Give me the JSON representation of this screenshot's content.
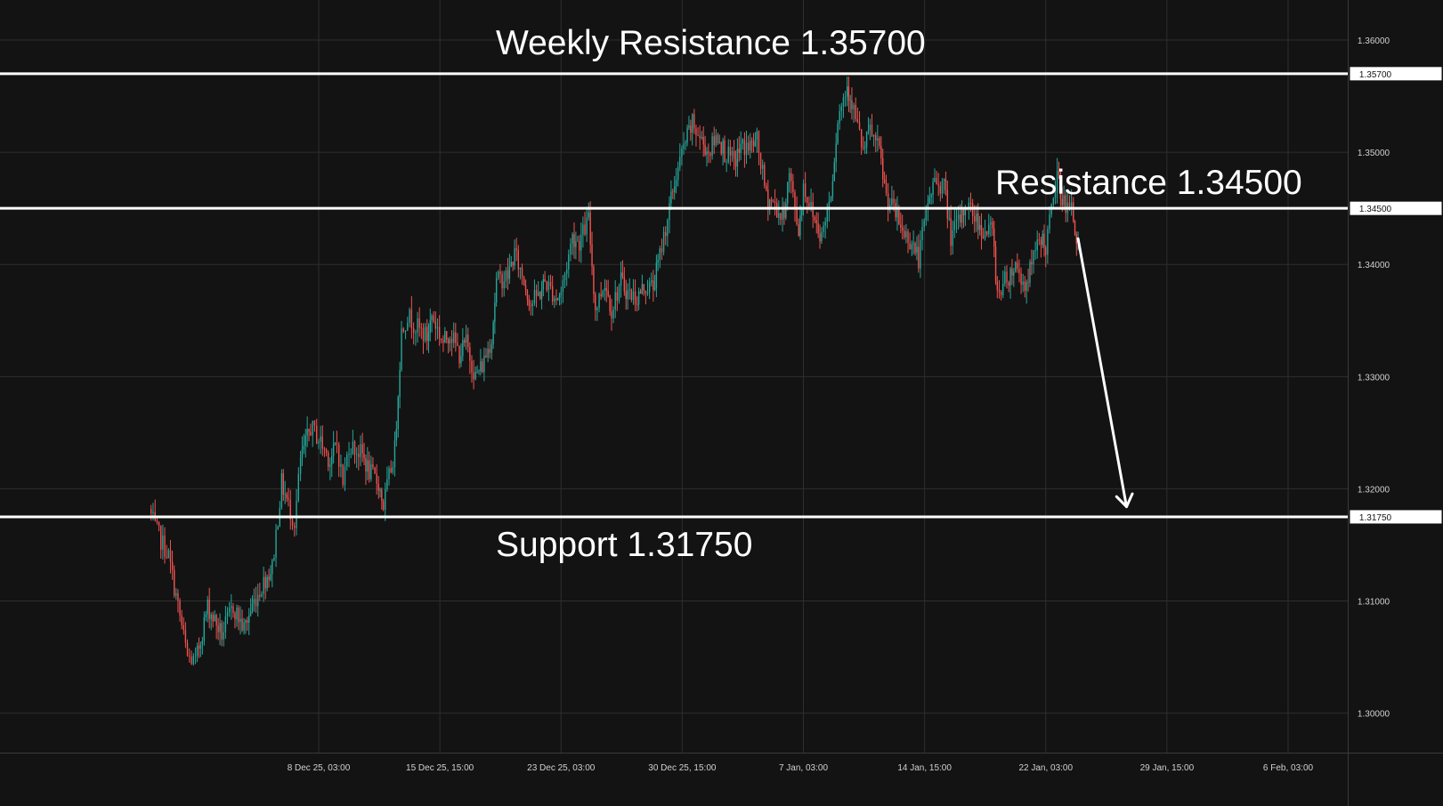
{
  "colors": {
    "background": "#131313",
    "grid": "#2e2e2e",
    "bull": "#26a69a",
    "bear": "#ef5350",
    "level_line": "#ffffff",
    "text": "#ffffff",
    "axis_text": "#d1d1d1"
  },
  "chart_data": {
    "type": "candlestick",
    "title": "",
    "xlabel": "",
    "ylabel": "",
    "ylim": [
      1.2968,
      1.3623
    ],
    "grid": true,
    "y_ticks": [
      {
        "value": 1.3,
        "label": "1.30000"
      },
      {
        "value": 1.31,
        "label": "1.31000"
      },
      {
        "value": 1.32,
        "label": "1.32000"
      },
      {
        "value": 1.33,
        "label": "1.33000"
      },
      {
        "value": 1.34,
        "label": "1.34000"
      },
      {
        "value": 1.35,
        "label": "1.35000"
      },
      {
        "value": 1.36,
        "label": "1.36000"
      }
    ],
    "x_ticks": [
      {
        "value": "2025-12-08T03:00",
        "label": "8 Dec 25, 03:00"
      },
      {
        "value": "2025-12-15T15:00",
        "label": "15 Dec 25, 15:00"
      },
      {
        "value": "2025-12-23T03:00",
        "label": "23 Dec 25, 03:00"
      },
      {
        "value": "2025-12-30T15:00",
        "label": "30 Dec 25, 15:00"
      },
      {
        "value": "2026-01-07T03:00",
        "label": "7 Jan, 03:00"
      },
      {
        "value": "2026-01-14T15:00",
        "label": "14 Jan, 15:00"
      },
      {
        "value": "2026-01-22T03:00",
        "label": "22 Jan, 03:00"
      },
      {
        "value": "2026-01-29T15:00",
        "label": "29 Jan, 15:00"
      },
      {
        "value": "2026-02-06T03:00",
        "label": "6 Feb, 03:00"
      }
    ],
    "price_path": [
      [
        "2025-11-27T15:00",
        1.3182
      ],
      [
        "2025-11-28T00:00",
        1.3165
      ],
      [
        "2025-11-28T20:00",
        1.314
      ],
      [
        "2025-11-30T00:00",
        1.305
      ],
      [
        "2025-11-30T12:00",
        1.3045
      ],
      [
        "2025-12-01T06:00",
        1.3095
      ],
      [
        "2025-12-02T03:00",
        1.307
      ],
      [
        "2025-12-02T20:00",
        1.3095
      ],
      [
        "2025-12-03T12:00",
        1.3075
      ],
      [
        "2025-12-04T03:00",
        1.31
      ],
      [
        "2025-12-04T20:00",
        1.312
      ],
      [
        "2025-12-05T06:00",
        1.313
      ],
      [
        "2025-12-05T20:00",
        1.3205
      ],
      [
        "2025-12-06T06:00",
        1.3185
      ],
      [
        "2025-12-06T15:00",
        1.317
      ],
      [
        "2025-12-07T00:00",
        1.3225
      ],
      [
        "2025-12-07T15:00",
        1.3255
      ],
      [
        "2025-12-08T03:00",
        1.3245
      ],
      [
        "2025-12-08T20:00",
        1.3225
      ],
      [
        "2025-12-09T06:00",
        1.324
      ],
      [
        "2025-12-09T15:00",
        1.3205
      ],
      [
        "2025-12-10T00:00",
        1.324
      ],
      [
        "2025-12-10T20:00",
        1.323
      ],
      [
        "2025-12-11T06:00",
        1.3215
      ],
      [
        "2025-12-11T20:00",
        1.3205
      ],
      [
        "2025-12-12T03:00",
        1.3185
      ],
      [
        "2025-12-12T20:00",
        1.3235
      ],
      [
        "2025-12-13T06:00",
        1.334
      ],
      [
        "2025-12-13T15:00",
        1.3355
      ],
      [
        "2025-12-14T03:00",
        1.3345
      ],
      [
        "2025-12-14T20:00",
        1.3335
      ],
      [
        "2025-12-15T03:00",
        1.3355
      ],
      [
        "2025-12-15T20:00",
        1.333
      ],
      [
        "2025-12-16T06:00",
        1.334
      ],
      [
        "2025-12-16T20:00",
        1.332
      ],
      [
        "2025-12-17T06:00",
        1.333
      ],
      [
        "2025-12-17T20:00",
        1.33
      ],
      [
        "2025-12-18T06:00",
        1.331
      ],
      [
        "2025-12-18T20:00",
        1.3335
      ],
      [
        "2025-12-19T03:00",
        1.3385
      ],
      [
        "2025-12-19T20:00",
        1.339
      ],
      [
        "2025-12-20T06:00",
        1.341
      ],
      [
        "2025-12-20T20:00",
        1.3385
      ],
      [
        "2025-12-21T06:00",
        1.3365
      ],
      [
        "2025-12-21T20:00",
        1.3375
      ],
      [
        "2025-12-22T03:00",
        1.3385
      ],
      [
        "2025-12-22T20:00",
        1.337
      ],
      [
        "2025-12-23T03:00",
        1.3375
      ],
      [
        "2025-12-23T20:00",
        1.3425
      ],
      [
        "2025-12-24T06:00",
        1.342
      ],
      [
        "2025-12-24T20:00",
        1.344
      ],
      [
        "2025-12-25T06:00",
        1.336
      ],
      [
        "2025-12-25T20:00",
        1.3385
      ],
      [
        "2025-12-26T06:00",
        1.336
      ],
      [
        "2025-12-26T20:00",
        1.3385
      ],
      [
        "2025-12-27T06:00",
        1.3375
      ],
      [
        "2025-12-27T20:00",
        1.337
      ],
      [
        "2025-12-28T06:00",
        1.338
      ],
      [
        "2025-12-28T20:00",
        1.338
      ],
      [
        "2025-12-29T03:00",
        1.34
      ],
      [
        "2025-12-29T20:00",
        1.345
      ],
      [
        "2025-12-30T06:00",
        1.348
      ],
      [
        "2025-12-30T20:00",
        1.351
      ],
      [
        "2025-12-31T06:00",
        1.3525
      ],
      [
        "2025-12-31T20:00",
        1.351
      ],
      [
        "2026-01-01T06:00",
        1.35
      ],
      [
        "2026-01-01T20:00",
        1.3515
      ],
      [
        "2026-01-02T06:00",
        1.35
      ],
      [
        "2026-01-02T20:00",
        1.349
      ],
      [
        "2026-01-03T06:00",
        1.3505
      ],
      [
        "2026-01-03T20:00",
        1.3505
      ],
      [
        "2026-01-04T06:00",
        1.351
      ],
      [
        "2026-01-04T20:00",
        1.346
      ],
      [
        "2026-01-05T06:00",
        1.3455
      ],
      [
        "2026-01-05T20:00",
        1.344
      ],
      [
        "2026-01-06T06:00",
        1.348
      ],
      [
        "2026-01-06T20:00",
        1.343
      ],
      [
        "2026-01-07T03:00",
        1.347
      ],
      [
        "2026-01-07T20:00",
        1.344
      ],
      [
        "2026-01-08T06:00",
        1.3425
      ],
      [
        "2026-01-08T20:00",
        1.3465
      ],
      [
        "2026-01-09T06:00",
        1.353
      ],
      [
        "2026-01-09T20:00",
        1.356
      ],
      [
        "2026-01-10T03:00",
        1.3545
      ],
      [
        "2026-01-10T20:00",
        1.35
      ],
      [
        "2026-01-11T06:00",
        1.352
      ],
      [
        "2026-01-11T20:00",
        1.35
      ],
      [
        "2026-01-12T06:00",
        1.346
      ],
      [
        "2026-01-12T20:00",
        1.3445
      ],
      [
        "2026-01-13T06:00",
        1.343
      ],
      [
        "2026-01-13T20:00",
        1.342
      ],
      [
        "2026-01-14T06:00",
        1.3405
      ],
      [
        "2026-01-14T20:00",
        1.3455
      ],
      [
        "2026-01-15T06:00",
        1.3475
      ],
      [
        "2026-01-15T20:00",
        1.347
      ],
      [
        "2026-01-16T06:00",
        1.3425
      ],
      [
        "2026-01-16T20:00",
        1.344
      ],
      [
        "2026-01-17T06:00",
        1.3455
      ],
      [
        "2026-01-17T20:00",
        1.344
      ],
      [
        "2026-01-18T06:00",
        1.343
      ],
      [
        "2026-01-18T20:00",
        1.343
      ],
      [
        "2026-01-19T03:00",
        1.3375
      ],
      [
        "2026-01-19T20:00",
        1.339
      ],
      [
        "2026-01-20T06:00",
        1.34
      ],
      [
        "2026-01-20T20:00",
        1.338
      ],
      [
        "2026-01-21T06:00",
        1.34
      ],
      [
        "2026-01-21T20:00",
        1.3425
      ],
      [
        "2026-01-22T03:00",
        1.3415
      ],
      [
        "2026-01-22T20:00",
        1.348
      ],
      [
        "2026-01-23T06:00",
        1.3455
      ],
      [
        "2026-01-23T20:00",
        1.3445
      ],
      [
        "2026-01-24T03:00",
        1.3415
      ]
    ],
    "levels": [
      {
        "name": "weekly_resistance",
        "value": 1.357,
        "tag": "1.35700",
        "label": "Weekly Resistance 1.35700"
      },
      {
        "name": "resistance",
        "value": 1.345,
        "tag": "1.34500",
        "label": "Resistance 1.34500"
      },
      {
        "name": "support",
        "value": 1.3175,
        "tag": "1.31750",
        "label": "Support 1.31750"
      }
    ],
    "arrow": {
      "from": [
        "2026-01-24T03:00",
        1.3423
      ],
      "to": [
        "2026-01-27T03:00",
        1.3184
      ]
    }
  }
}
